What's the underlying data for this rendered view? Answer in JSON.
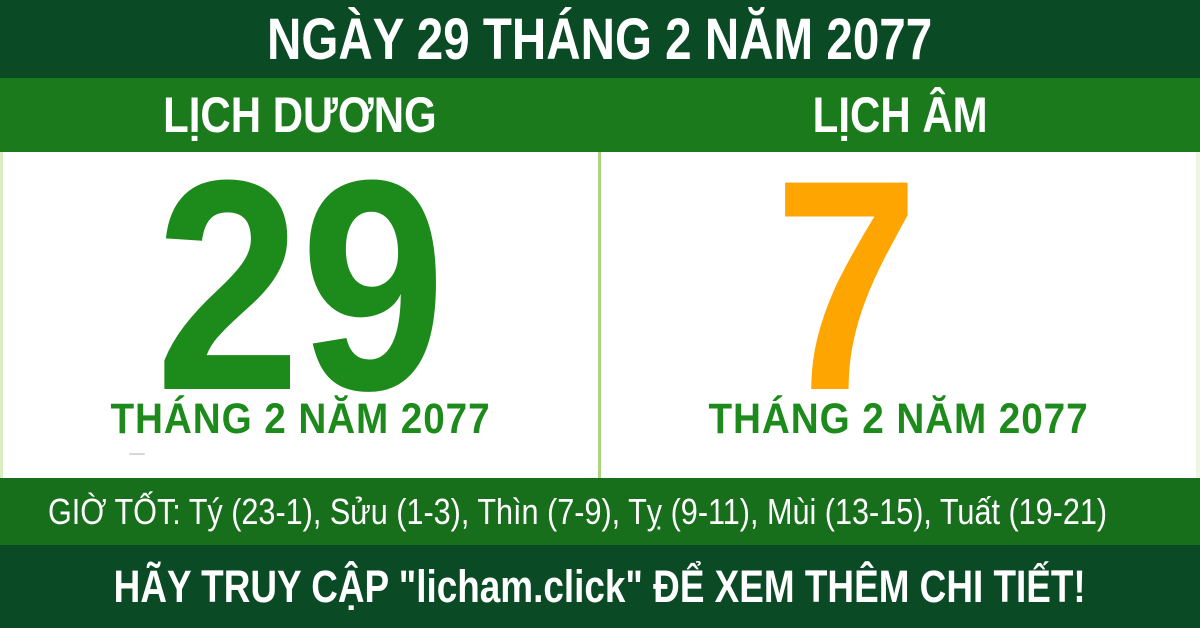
{
  "colors": {
    "dark_green": "#0a4a24",
    "bar_green": "#1a7a1c",
    "hours_green": "#176f1c",
    "day_green": "#1d8a1c",
    "lunar_orange": "#ffa502",
    "divider_green": "#aad47e",
    "text_white": "#ffffff"
  },
  "header": {
    "title": "NGÀY 29 THÁNG 2 NĂM 2077"
  },
  "calendar": {
    "solar": {
      "label": "LỊCH DƯƠNG",
      "day": "29",
      "month_year": "THÁNG 2 NĂM 2077"
    },
    "lunar": {
      "label": "LỊCH ÂM",
      "day": "7",
      "month_year": "THÁNG 2 NĂM 2077"
    }
  },
  "good_hours": {
    "text": "GIỜ TỐT: Tý (23-1), Sửu (1-3), Thìn (7-9), Tỵ (9-11), Mùi (13-15), Tuất (19-21)"
  },
  "footer": {
    "cta": "HÃY TRUY CẬP \"licham.click\" ĐỂ XEM THÊM CHI TIẾT!"
  }
}
